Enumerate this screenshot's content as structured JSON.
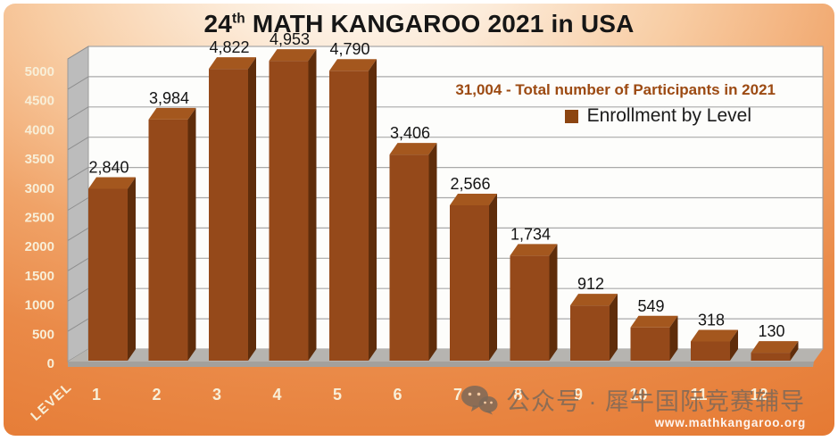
{
  "title": {
    "number": "24",
    "superscript": "th",
    "rest": " MATH KANGAROO 2021 in USA"
  },
  "annotation": "31,004 - Total number of Participants in 2021",
  "legend": {
    "label": "Enrollment by Level",
    "swatch_color": "#8C4511"
  },
  "watermark": {
    "icon": "wechat-icon",
    "text": "公众号 · 犀牛国际竞赛辅导",
    "url": "www.mathkangaroo.org"
  },
  "chart_data": {
    "type": "bar",
    "style": "3d-column",
    "title": "24th MATH KANGAROO 2021 in USA",
    "categories": [
      "1",
      "2",
      "3",
      "4",
      "5",
      "6",
      "7",
      "8",
      "9",
      "10",
      "11",
      "12"
    ],
    "series": [
      {
        "name": "Enrollment by Level",
        "values": [
          2840,
          3984,
          4822,
          4953,
          4790,
          3406,
          2566,
          1734,
          912,
          549,
          318,
          130
        ]
      }
    ],
    "value_labels": [
      "2,840",
      "3,984",
      "4,822",
      "4,953",
      "4,790",
      "3,406",
      "2,566",
      "1,734",
      "912",
      "549",
      "318",
      "130"
    ],
    "xlabel": "LEVEL",
    "ylabel": "",
    "ylim": [
      0,
      5000
    ],
    "ytick_step": 500,
    "ytick_labels": [
      "0",
      "500",
      "1000",
      "1500",
      "2000",
      "2500",
      "3000",
      "3500",
      "4000",
      "4500",
      "5000"
    ],
    "grid": "horizontal",
    "legend_position": "inside-top-right",
    "colors": {
      "bar_front": "#95491A",
      "bar_side": "#5F2D0B",
      "bar_top": "#A4571E",
      "wall": "#BCBCBC",
      "wall_line": "#8F8F8F",
      "floor_top": "#B6B4B0",
      "floor_front": "#A3A09C",
      "plot_bg": "#FDFDFB",
      "gridline": "#A9A9A9",
      "plot_border": "#9A9A9A",
      "axis_label": "#F8EFD8",
      "value_label": "#141414",
      "annotation": "#9C4A12"
    }
  }
}
